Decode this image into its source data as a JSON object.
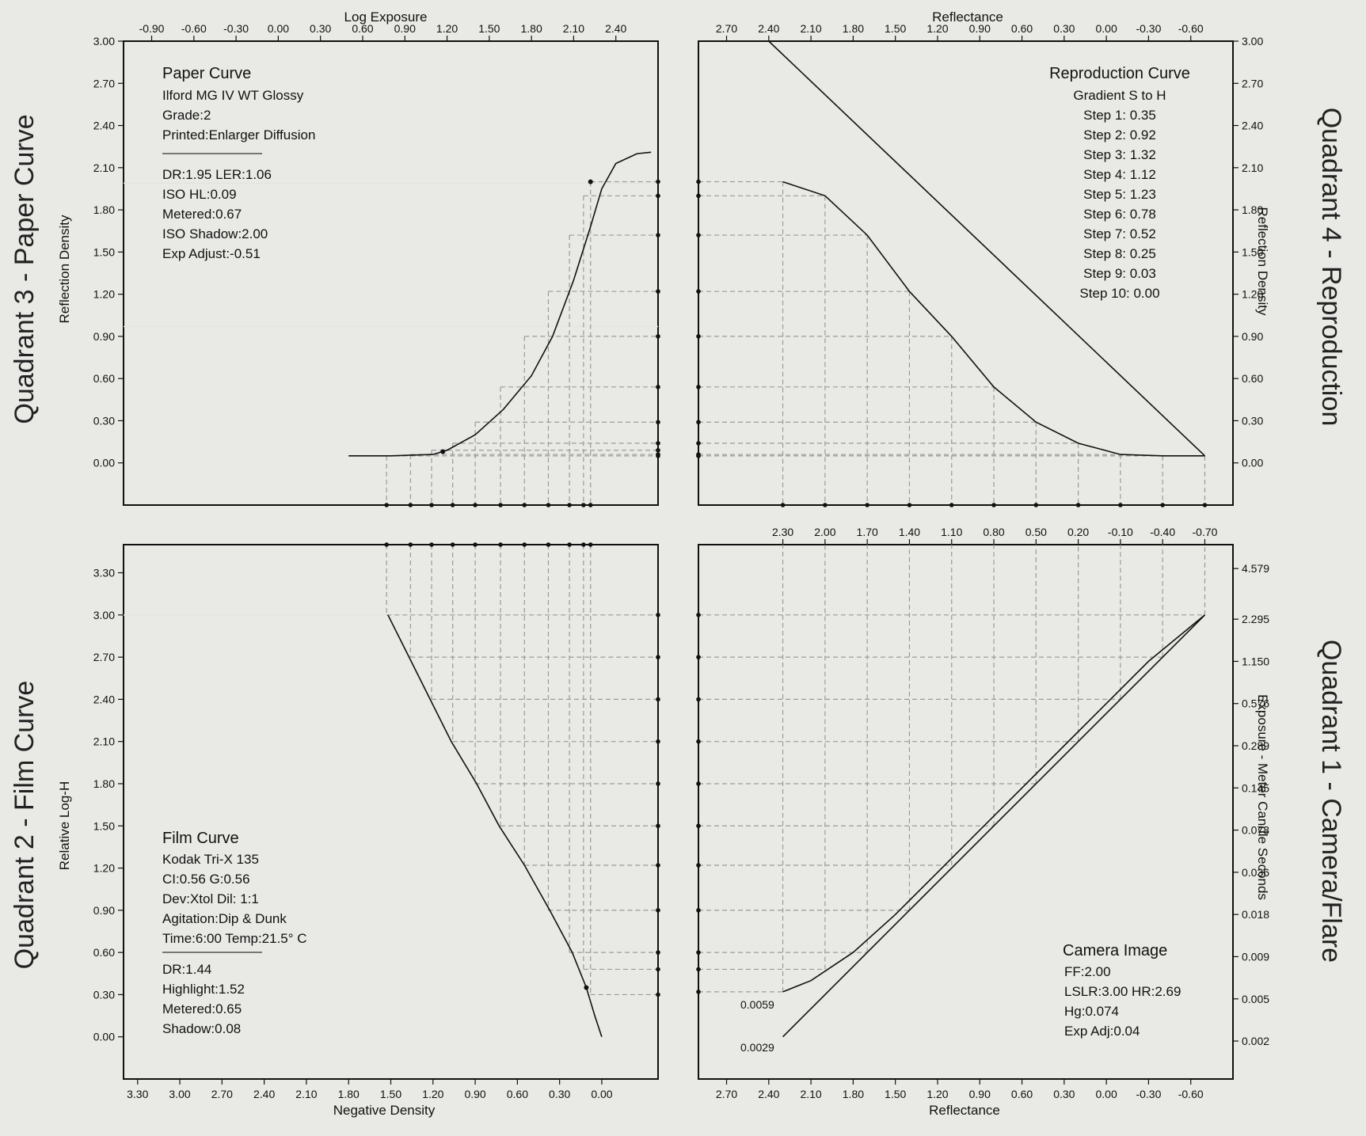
{
  "quadrant_titles": {
    "q3": "Quadrant 3 - Paper Curve",
    "q4": "Quadrant 4 - Reproduction",
    "q2": "Quadrant 2 - Film Curve",
    "q1": "Quadrant 1 - Camera/Flare"
  },
  "axis_labels": {
    "log_exposure": "Log Exposure",
    "reflectance_top": "Reflectance",
    "reflection_density_left": "Reflection Density",
    "reflection_density_right": "Reflection Density",
    "relative_log_h": "Relative Log-H",
    "exposure_meter": "Exposure - Meter Candle Seconds",
    "negative_density": "Negative Density",
    "reflectance_bottom": "Reflectance"
  },
  "ticks": {
    "log_exposure": [
      "-0.90",
      "-0.60",
      "-0.30",
      "0.00",
      "0.30",
      "0.60",
      "0.90",
      "1.20",
      "1.50",
      "1.80",
      "2.10",
      "2.40"
    ],
    "reflectance_top": [
      "2.70",
      "2.40",
      "2.10",
      "1.80",
      "1.50",
      "1.20",
      "0.90",
      "0.60",
      "0.30",
      "0.00",
      "-0.30",
      "-0.60"
    ],
    "refl_density_left": [
      "3.00",
      "2.70",
      "2.40",
      "2.10",
      "1.80",
      "1.50",
      "1.20",
      "0.90",
      "0.60",
      "0.30",
      "0.00"
    ],
    "refl_density_right": [
      "3.00",
      "2.70",
      "2.40",
      "2.10",
      "1.80",
      "1.50",
      "1.20",
      "0.90",
      "0.60",
      "0.30",
      "0.00"
    ],
    "rel_log_h": [
      "3.30",
      "3.00",
      "2.70",
      "2.40",
      "2.10",
      "1.80",
      "1.50",
      "1.20",
      "0.90",
      "0.60",
      "0.30",
      "0.00"
    ],
    "q1_top": [
      "2.30",
      "2.00",
      "1.70",
      "1.40",
      "1.10",
      "0.80",
      "0.50",
      "0.20",
      "-0.10",
      "-0.40",
      "-0.70"
    ],
    "exposure_meter": [
      "4.579",
      "2.295",
      "1.150",
      "0.576",
      "0.289",
      "0.145",
      "0.073",
      "0.036",
      "0.018",
      "0.009",
      "0.005",
      "0.002"
    ],
    "negative_density": [
      "3.30",
      "3.00",
      "2.70",
      "2.40",
      "2.10",
      "1.80",
      "1.50",
      "1.20",
      "0.90",
      "0.60",
      "0.30",
      "0.00"
    ],
    "reflectance_bottom": [
      "2.70",
      "2.40",
      "2.10",
      "1.80",
      "1.50",
      "1.20",
      "0.90",
      "0.60",
      "0.30",
      "0.00",
      "-0.30",
      "-0.60"
    ]
  },
  "paper_info": {
    "title": "Paper Curve",
    "lines": [
      "Ilford MG IV WT  Glossy",
      "Grade:2",
      "Printed:Enlarger Diffusion"
    ],
    "stats": [
      "DR:1.95  LER:1.06",
      "ISO HL:0.09",
      "Metered:0.67",
      "ISO Shadow:2.00",
      "Exp Adjust:-0.51"
    ]
  },
  "repro_info": {
    "title": "Reproduction Curve",
    "subtitle": "Gradient S to H",
    "steps": [
      "Step 1: 0.35",
      "Step 2: 0.92",
      "Step 3: 1.32",
      "Step 4: 1.12",
      "Step 5: 1.23",
      "Step 6: 0.78",
      "Step 7: 0.52",
      "Step 8: 0.25",
      "Step 9: 0.03",
      "Step 10: 0.00"
    ]
  },
  "film_info": {
    "title": "Film Curve",
    "lines": [
      "Kodak Tri-X 135",
      "CI:0.56  G:0.56",
      "Dev:Xtol  Dil: 1:1",
      "Agitation:Dip & Dunk",
      "Time:6:00  Temp:21.5° C"
    ],
    "stats": [
      "DR:1.44",
      "Highlight:1.52",
      "Metered:0.65",
      "Shadow:0.08"
    ]
  },
  "camera_info": {
    "title": "Camera Image",
    "lines": [
      "FF:2.00",
      "LSLR:3.00 HR:2.69",
      "Hg:0.074",
      "Exp Adj:0.04"
    ]
  },
  "q1_annotations": [
    "0.0059",
    "0.0029"
  ],
  "chart_data": [
    {
      "type": "line",
      "name": "Paper Curve",
      "xlabel": "Log Exposure",
      "ylabel": "Reflection Density",
      "x_axis_reversed": false,
      "xlim": [
        -1.1,
        2.7
      ],
      "ylim": [
        -0.3,
        3.0
      ],
      "points": [
        [
          0.5,
          0.05
        ],
        [
          0.8,
          0.05
        ],
        [
          1.1,
          0.06
        ],
        [
          1.2,
          0.09
        ],
        [
          1.4,
          0.2
        ],
        [
          1.6,
          0.38
        ],
        [
          1.8,
          0.62
        ],
        [
          1.95,
          0.9
        ],
        [
          2.1,
          1.3
        ],
        [
          2.22,
          1.68
        ],
        [
          2.3,
          1.95
        ],
        [
          2.4,
          2.13
        ],
        [
          2.55,
          2.2
        ],
        [
          2.65,
          2.21
        ]
      ],
      "step_x": [
        0.77,
        0.94,
        1.09,
        1.24,
        1.4,
        1.58,
        1.75,
        1.92,
        2.07,
        2.17,
        2.22
      ],
      "step_y": [
        0.05,
        0.06,
        0.09,
        0.14,
        0.29,
        0.54,
        0.9,
        1.22,
        1.62,
        1.9,
        2.0
      ]
    },
    {
      "type": "line",
      "name": "Reproduction Curve",
      "xlabel": "Reflectance",
      "ylabel": "Reflection Density",
      "x_axis_reversed": true,
      "xlim": [
        2.9,
        -0.9
      ],
      "ylim": [
        -0.3,
        3.0
      ],
      "aim_line": [
        [
          2.4,
          3.0
        ],
        [
          -0.7,
          0.05
        ]
      ],
      "points": [
        [
          2.3,
          2.0
        ],
        [
          2.0,
          1.9
        ],
        [
          1.7,
          1.62
        ],
        [
          1.4,
          1.22
        ],
        [
          1.1,
          0.9
        ],
        [
          0.8,
          0.54
        ],
        [
          0.5,
          0.29
        ],
        [
          0.2,
          0.14
        ],
        [
          -0.1,
          0.06
        ],
        [
          -0.4,
          0.05
        ],
        [
          -0.7,
          0.05
        ]
      ]
    },
    {
      "type": "line",
      "name": "Film Curve",
      "xlabel": "Negative Density",
      "ylabel": "Relative Log-H",
      "x_axis_reversed": true,
      "xlim": [
        3.4,
        -0.4
      ],
      "ylim": [
        -0.3,
        3.5
      ],
      "points": [
        [
          1.52,
          3.0
        ],
        [
          1.37,
          2.7
        ],
        [
          1.22,
          2.4
        ],
        [
          1.07,
          2.1
        ],
        [
          0.89,
          1.8
        ],
        [
          0.73,
          1.5
        ],
        [
          0.55,
          1.22
        ],
        [
          0.37,
          0.9
        ],
        [
          0.21,
          0.6
        ],
        [
          0.11,
          0.35
        ],
        [
          0.05,
          0.15
        ],
        [
          0.0,
          0.0
        ]
      ],
      "step_y": [
        3.0,
        2.7,
        2.4,
        2.1,
        1.8,
        1.5,
        1.22,
        0.9,
        0.6,
        0.48,
        0.3
      ]
    },
    {
      "type": "line",
      "name": "Camera/Flare",
      "xlabel": "Reflectance",
      "ylabel": "Exposure - Meter Candle Seconds",
      "x_axis_reversed": true,
      "xlim": [
        2.9,
        -0.9
      ],
      "ylim": [
        -0.3,
        3.5
      ],
      "camera_line": [
        [
          2.3,
          0.0
        ],
        [
          -0.7,
          3.0
        ]
      ],
      "flare_curve": [
        [
          2.3,
          0.32
        ],
        [
          2.1,
          0.4
        ],
        [
          1.8,
          0.6
        ],
        [
          1.5,
          0.87
        ],
        [
          1.2,
          1.17
        ],
        [
          0.9,
          1.47
        ],
        [
          0.6,
          1.77
        ],
        [
          0.3,
          2.07
        ],
        [
          0.0,
          2.37
        ],
        [
          -0.3,
          2.67
        ],
        [
          -0.7,
          3.0
        ]
      ],
      "step_x": [
        2.3,
        2.0,
        1.7,
        1.4,
        1.1,
        0.8,
        0.5,
        0.2,
        -0.1,
        -0.4,
        -0.7
      ],
      "step_y": [
        0.32,
        0.48,
        0.6,
        0.9,
        1.22,
        1.5,
        1.8,
        2.1,
        2.4,
        2.7,
        3.0
      ]
    }
  ]
}
